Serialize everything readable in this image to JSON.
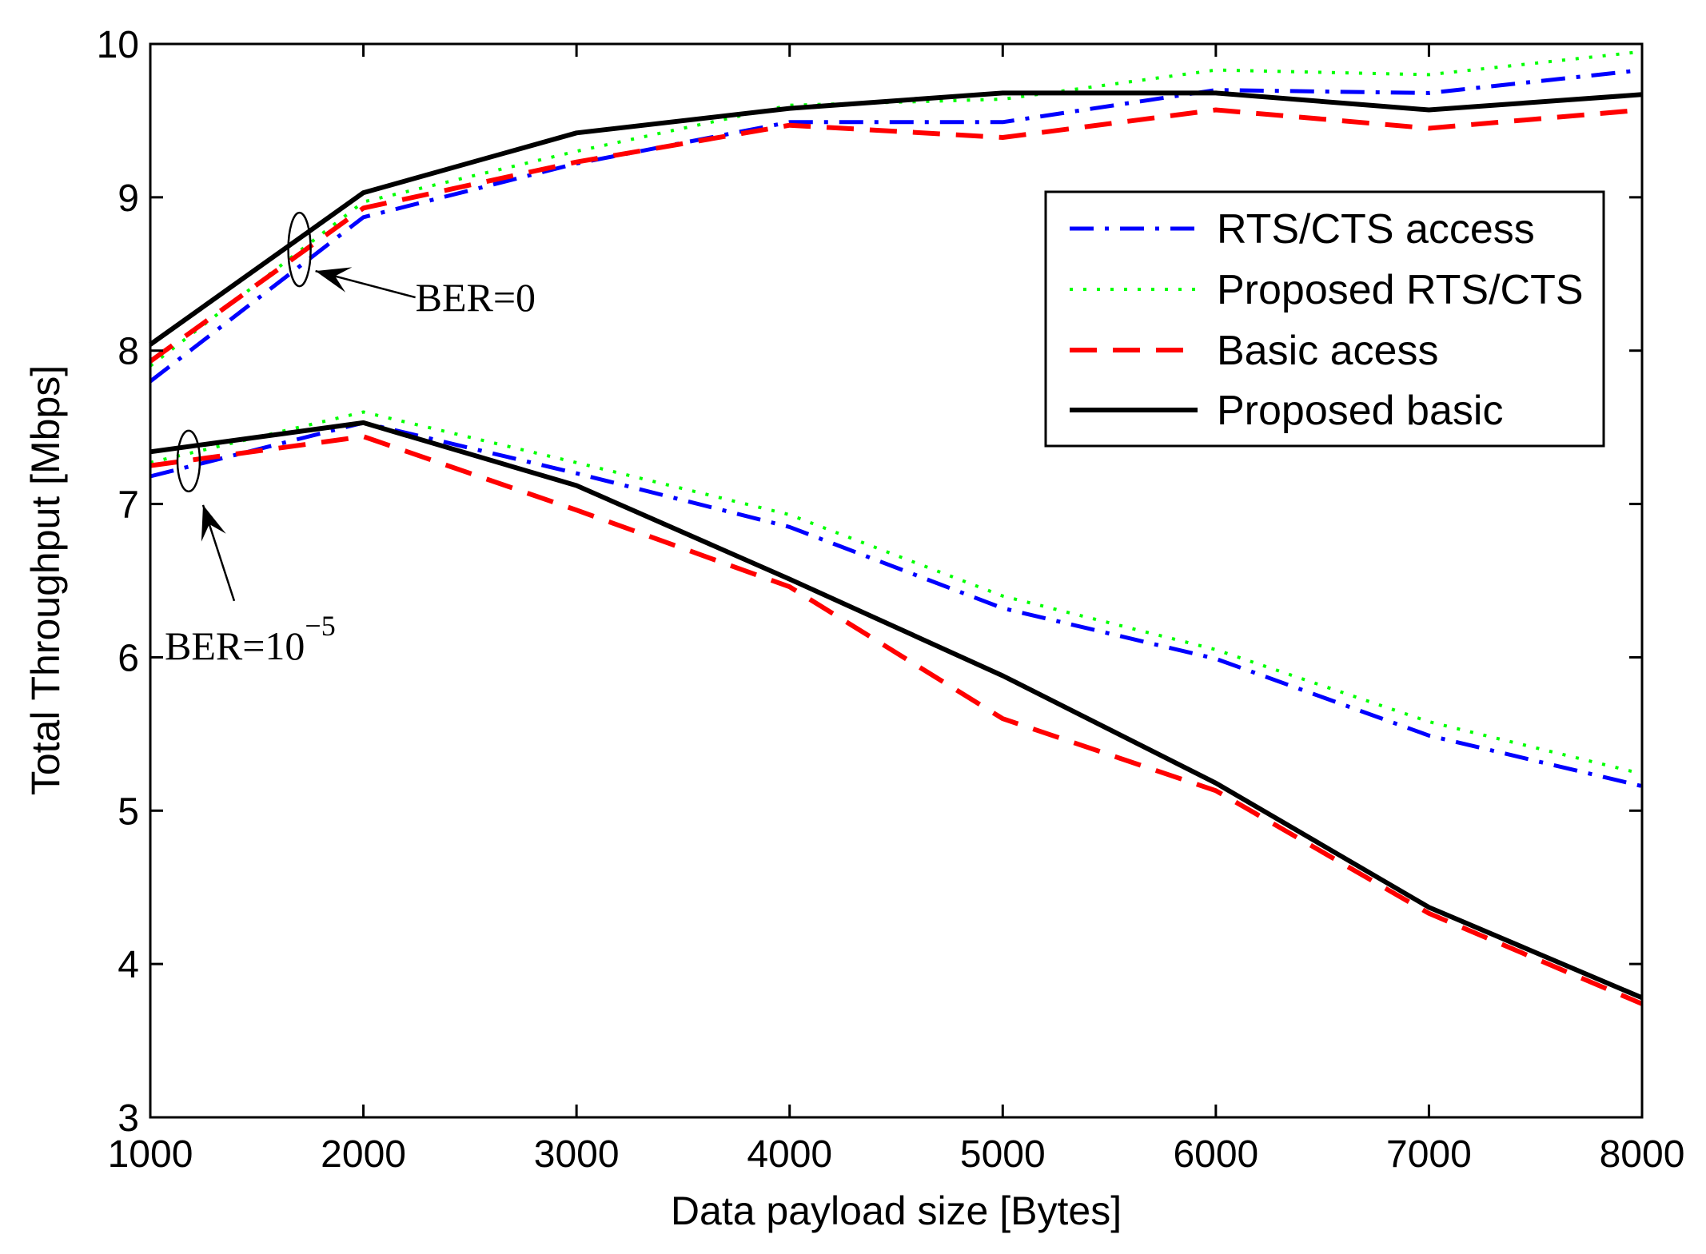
{
  "chart_data": {
    "type": "line",
    "title": "",
    "xlabel": "Data payload size [Bytes]",
    "ylabel": "Total Throughput [Mbps]",
    "xlim": [
      1000,
      8000
    ],
    "ylim": [
      3,
      10
    ],
    "xticks": [
      1000,
      2000,
      3000,
      4000,
      5000,
      6000,
      7000,
      8000
    ],
    "yticks": [
      3,
      4,
      5,
      6,
      7,
      8,
      9,
      10
    ],
    "grid": false,
    "legend_position": "top-right",
    "x": [
      1000,
      2000,
      3000,
      4000,
      5000,
      6000,
      7000,
      8000
    ],
    "series": [
      {
        "name": "RTS/CTS access",
        "group": "BER=0",
        "color": "#0000ff",
        "style": "dashdot",
        "values": [
          7.8,
          8.87,
          9.22,
          9.49,
          9.49,
          9.7,
          9.68,
          9.83
        ]
      },
      {
        "name": "Proposed RTS/CTS",
        "group": "BER=0",
        "color": "#00ff00",
        "style": "dotted",
        "values": [
          7.9,
          8.97,
          9.3,
          9.6,
          9.64,
          9.83,
          9.8,
          9.95
        ]
      },
      {
        "name": "Basic acess",
        "group": "BER=0",
        "color": "#ff0000",
        "style": "dashed",
        "values": [
          7.93,
          8.93,
          9.23,
          9.47,
          9.39,
          9.57,
          9.45,
          9.57
        ]
      },
      {
        "name": "Proposed basic",
        "group": "BER=0",
        "color": "#000000",
        "style": "solid",
        "values": [
          8.04,
          9.03,
          9.42,
          9.58,
          9.68,
          9.68,
          9.57,
          9.67
        ]
      },
      {
        "name": "RTS/CTS access",
        "group": "BER=10^-5",
        "color": "#0000ff",
        "style": "dashdot",
        "values": [
          7.18,
          7.53,
          7.2,
          6.85,
          6.32,
          5.99,
          5.49,
          5.16
        ]
      },
      {
        "name": "Proposed RTS/CTS",
        "group": "BER=10^-5",
        "color": "#00ff00",
        "style": "dotted",
        "values": [
          7.27,
          7.6,
          7.27,
          6.93,
          6.4,
          6.05,
          5.58,
          5.24
        ]
      },
      {
        "name": "Basic acess",
        "group": "BER=10^-5",
        "color": "#ff0000",
        "style": "dashed",
        "values": [
          7.25,
          7.44,
          6.96,
          6.46,
          5.6,
          5.13,
          4.33,
          3.74
        ]
      },
      {
        "name": "Proposed basic",
        "group": "BER=10^-5",
        "color": "#000000",
        "style": "solid",
        "values": [
          7.34,
          7.53,
          7.12,
          6.51,
          5.88,
          5.18,
          4.37,
          3.78
        ]
      }
    ],
    "legend": [
      {
        "label": "RTS/CTS access",
        "color": "#0000ff",
        "style": "dashdot"
      },
      {
        "label": "Proposed RTS/CTS",
        "color": "#00ff00",
        "style": "dotted"
      },
      {
        "label": "Basic acess",
        "color": "#ff0000",
        "style": "dashed"
      },
      {
        "label": "Proposed basic",
        "color": "#000000",
        "style": "solid"
      }
    ],
    "annotations": [
      {
        "text": "BER=0",
        "target_x": 1700,
        "target_y": 8.66
      },
      {
        "text_base": "BER=10",
        "text_sup": "−5",
        "target_x": 1180,
        "target_y": 7.28
      }
    ]
  }
}
